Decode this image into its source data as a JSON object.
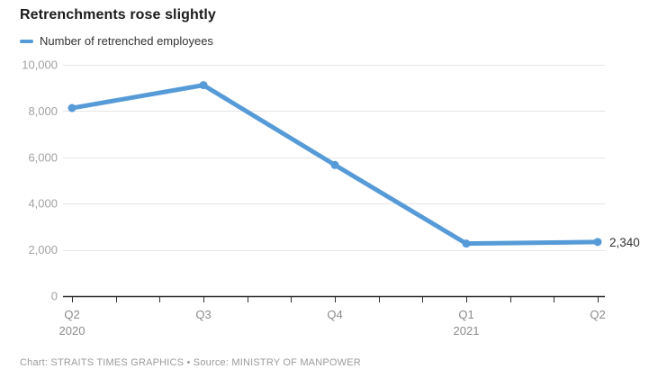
{
  "header": {
    "title": "Retrenchments rose slightly"
  },
  "legend": {
    "label": "Number of retrenched employees",
    "color": "#569bd8"
  },
  "annotation": {
    "last_value_label": "2,340"
  },
  "footer": {
    "text": "Chart: STRAITS TIMES GRAPHICS • Source: MINISTRY OF MANPOWER"
  },
  "chart_data": {
    "type": "line",
    "title": "Retrenchments rose slightly",
    "categories": [
      "Q2 2020",
      "Q3 2020",
      "Q4 2020",
      "Q1 2021",
      "Q2 2021"
    ],
    "x_tick_labels": [
      {
        "quarter": "Q2",
        "year": "2020"
      },
      {
        "quarter": "Q3",
        "year": ""
      },
      {
        "quarter": "Q4",
        "year": ""
      },
      {
        "quarter": "Q1",
        "year": "2021"
      },
      {
        "quarter": "Q2",
        "year": ""
      }
    ],
    "series": [
      {
        "name": "Number of retrenched employees",
        "values": [
          8130,
          9120,
          5670,
          2270,
          2340
        ],
        "color": "#569bd8"
      }
    ],
    "last_point_label": "2,340",
    "xlabel": "",
    "ylabel": "",
    "ylim": [
      0,
      10000
    ],
    "y_ticks": [
      0,
      2000,
      4000,
      6000,
      8000,
      10000
    ],
    "y_tick_labels": [
      "0",
      "2,000",
      "4,000",
      "6,000",
      "8,000",
      "10,000"
    ],
    "minor_x_ticks_per_interval": 3,
    "grid": "horizontal-only",
    "legend_position": "top-left",
    "colors": {
      "line": "#569bd8",
      "gridline": "#e5e5e5",
      "axis": "#2e2e2e",
      "y_tick_text": "#a2a2a2",
      "x_tick_text": "#8b8b8b",
      "title_text": "#1b1b1b",
      "annotation_text": "#333333"
    }
  }
}
